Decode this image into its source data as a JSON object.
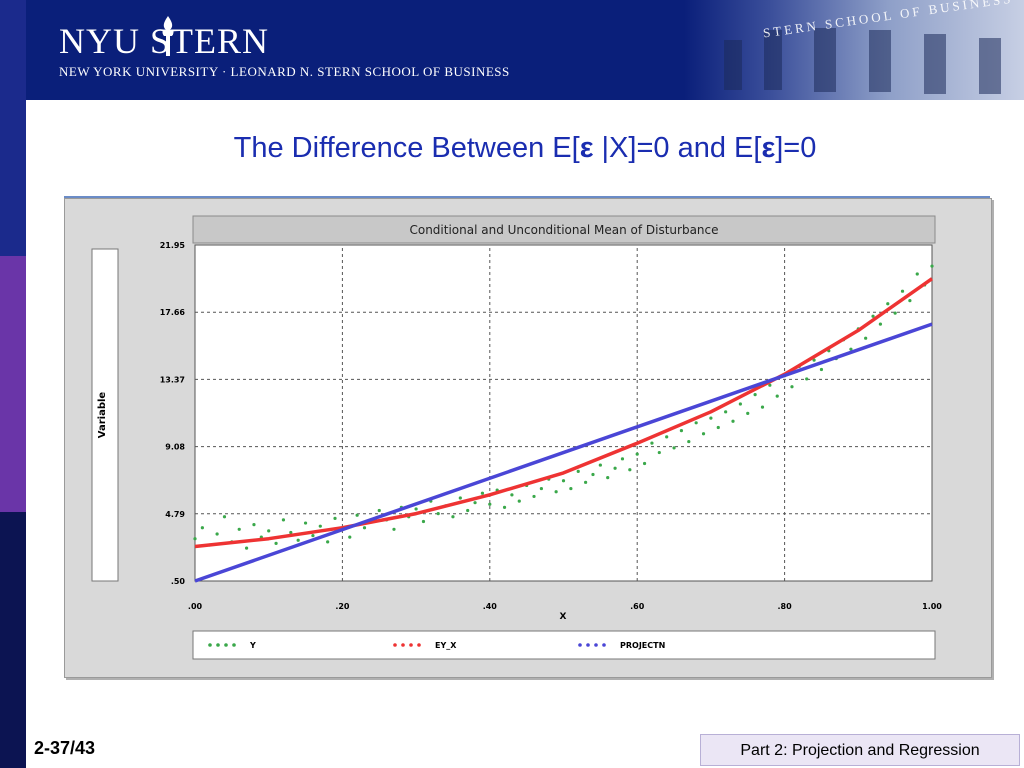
{
  "header": {
    "brand": "NYU STERN",
    "subtitle": "NEW YORK UNIVERSITY · LEONARD N. STERN SCHOOL OF BUSINESS",
    "photo_text": "STERN SCHOOL OF BUSINESS"
  },
  "slide": {
    "title_a": "The Difference Between E[",
    "epsilon": "ε",
    "title_b": " |X]=0 and E[",
    "title_c": "]=0"
  },
  "footer": {
    "page": "2-37/43",
    "section": "Part 2: Projection and Regression"
  },
  "colors": {
    "title_blue": "#1a2db0",
    "series_y": "#3aa84a",
    "series_eyx": "#ee3333",
    "series_projection": "#4a46d6"
  },
  "chart_data": {
    "type": "line",
    "title": "Conditional and Unconditional Mean of Disturbance",
    "xlabel": "X",
    "ylabel": "Variable",
    "xlim": [
      0,
      1
    ],
    "ylim": [
      0.5,
      21.95
    ],
    "x_ticks": [
      ".00",
      ".20",
      ".40",
      ".60",
      ".80",
      "1.00"
    ],
    "y_ticks": [
      "21.95",
      "17.66",
      "13.37",
      "9.08",
      "4.79",
      ".50"
    ],
    "y_tick_values": [
      21.95,
      17.66,
      13.37,
      9.08,
      4.79,
      0.5
    ],
    "grid": true,
    "legend_placement": "bottom",
    "series": [
      {
        "name": "Y",
        "style": "scatter",
        "points": [
          [
            0.0,
            3.2
          ],
          [
            0.01,
            3.9
          ],
          [
            0.02,
            2.8
          ],
          [
            0.03,
            3.5
          ],
          [
            0.04,
            4.6
          ],
          [
            0.05,
            3.0
          ],
          [
            0.06,
            3.8
          ],
          [
            0.07,
            2.6
          ],
          [
            0.08,
            4.1
          ],
          [
            0.09,
            3.3
          ],
          [
            0.1,
            3.7
          ],
          [
            0.11,
            2.9
          ],
          [
            0.12,
            4.4
          ],
          [
            0.13,
            3.6
          ],
          [
            0.14,
            3.1
          ],
          [
            0.15,
            4.2
          ],
          [
            0.16,
            3.4
          ],
          [
            0.17,
            4.0
          ],
          [
            0.18,
            3.0
          ],
          [
            0.19,
            4.5
          ],
          [
            0.2,
            3.8
          ],
          [
            0.21,
            3.3
          ],
          [
            0.22,
            4.7
          ],
          [
            0.23,
            3.9
          ],
          [
            0.24,
            4.3
          ],
          [
            0.25,
            5.0
          ],
          [
            0.26,
            4.4
          ],
          [
            0.27,
            3.8
          ],
          [
            0.28,
            5.2
          ],
          [
            0.29,
            4.6
          ],
          [
            0.3,
            5.1
          ],
          [
            0.31,
            4.3
          ],
          [
            0.32,
            5.6
          ],
          [
            0.33,
            4.8
          ],
          [
            0.34,
            5.3
          ],
          [
            0.35,
            4.6
          ],
          [
            0.36,
            5.8
          ],
          [
            0.37,
            5.0
          ],
          [
            0.38,
            5.5
          ],
          [
            0.39,
            6.1
          ],
          [
            0.4,
            5.4
          ],
          [
            0.41,
            6.3
          ],
          [
            0.42,
            5.2
          ],
          [
            0.43,
            6.0
          ],
          [
            0.44,
            5.6
          ],
          [
            0.45,
            6.6
          ],
          [
            0.46,
            5.9
          ],
          [
            0.47,
            6.4
          ],
          [
            0.48,
            7.0
          ],
          [
            0.49,
            6.2
          ],
          [
            0.5,
            6.9
          ],
          [
            0.51,
            6.4
          ],
          [
            0.52,
            7.5
          ],
          [
            0.53,
            6.8
          ],
          [
            0.54,
            7.3
          ],
          [
            0.55,
            7.9
          ],
          [
            0.56,
            7.1
          ],
          [
            0.57,
            7.7
          ],
          [
            0.58,
            8.3
          ],
          [
            0.59,
            7.6
          ],
          [
            0.6,
            8.6
          ],
          [
            0.61,
            8.0
          ],
          [
            0.62,
            9.3
          ],
          [
            0.63,
            8.7
          ],
          [
            0.64,
            9.7
          ],
          [
            0.65,
            9.0
          ],
          [
            0.66,
            10.1
          ],
          [
            0.67,
            9.4
          ],
          [
            0.68,
            10.6
          ],
          [
            0.69,
            9.9
          ],
          [
            0.7,
            10.9
          ],
          [
            0.71,
            10.3
          ],
          [
            0.72,
            11.3
          ],
          [
            0.73,
            10.7
          ],
          [
            0.74,
            11.8
          ],
          [
            0.75,
            11.2
          ],
          [
            0.76,
            12.4
          ],
          [
            0.77,
            11.6
          ],
          [
            0.78,
            13.0
          ],
          [
            0.79,
            12.3
          ],
          [
            0.8,
            13.6
          ],
          [
            0.81,
            12.9
          ],
          [
            0.82,
            14.2
          ],
          [
            0.83,
            13.4
          ],
          [
            0.84,
            14.6
          ],
          [
            0.85,
            14.0
          ],
          [
            0.86,
            15.2
          ],
          [
            0.87,
            14.7
          ],
          [
            0.88,
            15.9
          ],
          [
            0.89,
            15.3
          ],
          [
            0.9,
            16.6
          ],
          [
            0.91,
            16.0
          ],
          [
            0.92,
            17.4
          ],
          [
            0.93,
            16.9
          ],
          [
            0.94,
            18.2
          ],
          [
            0.95,
            17.6
          ],
          [
            0.96,
            19.0
          ],
          [
            0.97,
            18.4
          ],
          [
            0.98,
            20.1
          ],
          [
            0.99,
            19.4
          ],
          [
            1.0,
            20.6
          ]
        ]
      },
      {
        "name": "EY_X",
        "style": "line",
        "points": [
          [
            0.0,
            2.7
          ],
          [
            0.1,
            3.2
          ],
          [
            0.2,
            3.9
          ],
          [
            0.3,
            4.8
          ],
          [
            0.4,
            6.0
          ],
          [
            0.5,
            7.4
          ],
          [
            0.6,
            9.3
          ],
          [
            0.7,
            11.3
          ],
          [
            0.8,
            13.7
          ],
          [
            0.9,
            16.5
          ],
          [
            1.0,
            19.8
          ]
        ]
      },
      {
        "name": "PROJECTN",
        "style": "line",
        "points": [
          [
            0.0,
            0.5
          ],
          [
            1.0,
            16.9
          ]
        ]
      }
    ]
  }
}
